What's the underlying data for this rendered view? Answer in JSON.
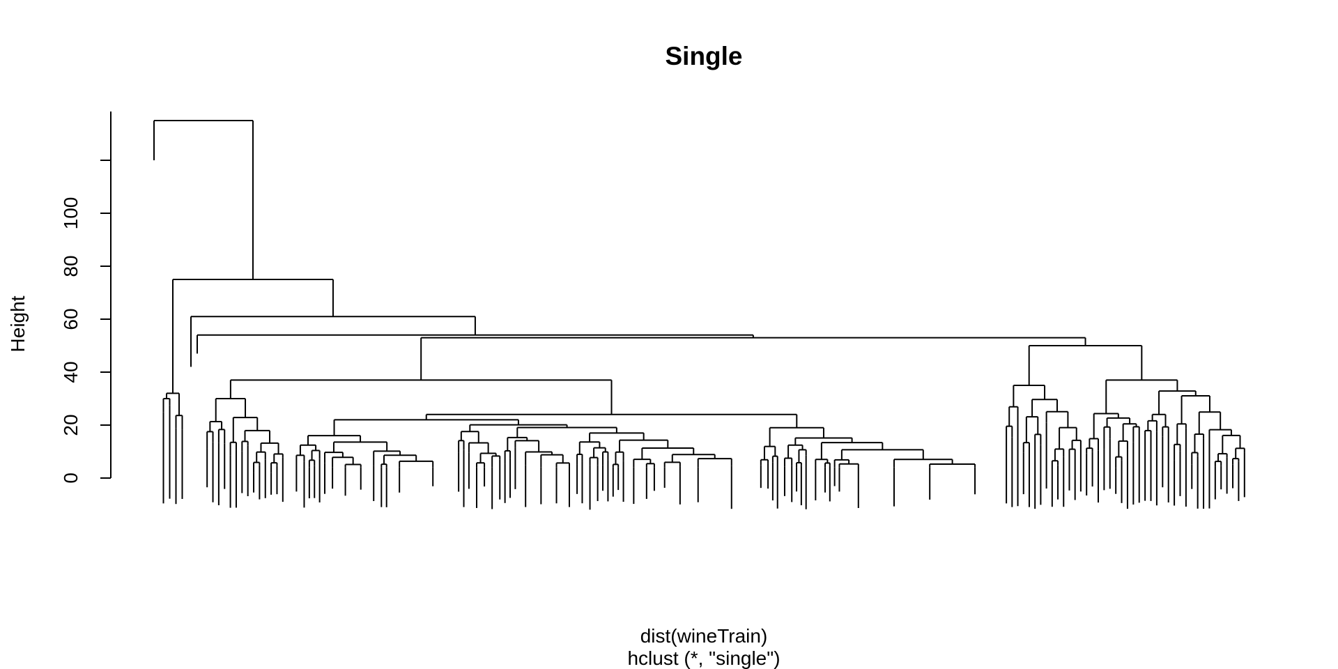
{
  "chart_data": {
    "type": "dendrogram",
    "title": "Single",
    "ylabel": "Height",
    "xlabel": "dist(wineTrain)",
    "sub": "hclust (*, \"single\")",
    "y_ticks": [
      0,
      20,
      40,
      60,
      80,
      100
    ],
    "ylim": [
      0,
      140
    ],
    "merge_heights_top": [
      135,
      75,
      61,
      54,
      53,
      50,
      37,
      36,
      35,
      32,
      30,
      24,
      22
    ],
    "grid": false,
    "legend": false
  }
}
